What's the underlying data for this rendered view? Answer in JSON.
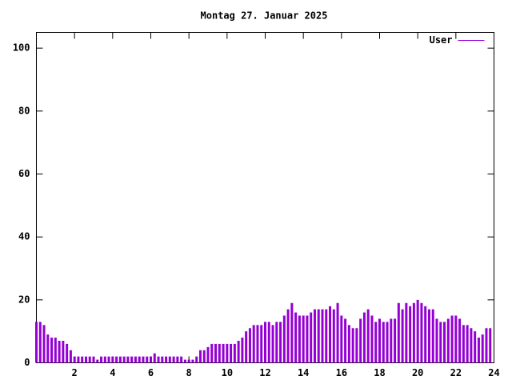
{
  "chart_data": {
    "type": "impulses",
    "title": "Montag 27. Januar 2025",
    "x": [
      0,
      0.2,
      0.4,
      0.6,
      0.8,
      1,
      1.2,
      1.4,
      1.6,
      1.8,
      2,
      2.2,
      2.4,
      2.6,
      2.8,
      3,
      3.2,
      3.4,
      3.6,
      3.8,
      4,
      4.2,
      4.4,
      4.6,
      4.8,
      5,
      5.2,
      5.4,
      5.6,
      5.8,
      6,
      6.2,
      6.4,
      6.6,
      6.8,
      7,
      7.2,
      7.4,
      7.6,
      7.8,
      8,
      8.2,
      8.4,
      8.6,
      8.8,
      9,
      9.2,
      9.4,
      9.6,
      9.8,
      10,
      10.2,
      10.4,
      10.6,
      10.8,
      11,
      11.2,
      11.4,
      11.6,
      11.8,
      12,
      12.2,
      12.4,
      12.6,
      12.8,
      13,
      13.2,
      13.4,
      13.6,
      13.8,
      14,
      14.2,
      14.4,
      14.6,
      14.8,
      15,
      15.2,
      15.4,
      15.6,
      15.8,
      16,
      16.2,
      16.4,
      16.6,
      16.8,
      17,
      17.2,
      17.4,
      17.6,
      17.8,
      18,
      18.2,
      18.4,
      18.6,
      18.8,
      19,
      19.2,
      19.4,
      19.6,
      19.8,
      20,
      20.2,
      20.4,
      20.6,
      20.8,
      21,
      21.2,
      21.4,
      21.6,
      21.8,
      22,
      22.2,
      22.4,
      22.6,
      22.8,
      23,
      23.2,
      23.4,
      23.6,
      23.8
    ],
    "series": [
      {
        "name": "User",
        "color": "#9400d3",
        "values": [
          13,
          13,
          12,
          9,
          8,
          8,
          7,
          7,
          6,
          4,
          2,
          2,
          2,
          2,
          2,
          2,
          1,
          2,
          2,
          2,
          2,
          2,
          2,
          2,
          2,
          2,
          2,
          2,
          2,
          2,
          2,
          3,
          2,
          2,
          2,
          2,
          2,
          2,
          2,
          1,
          1,
          1,
          2,
          4,
          4,
          5,
          6,
          6,
          6,
          6,
          6,
          6,
          6,
          7,
          8,
          10,
          11,
          12,
          12,
          12,
          13,
          13,
          12,
          13,
          13,
          15,
          17,
          19,
          16,
          15,
          15,
          15,
          16,
          17,
          17,
          17,
          17,
          18,
          17,
          19,
          15,
          14,
          12,
          11,
          11,
          14,
          16,
          17,
          15,
          13,
          14,
          13,
          13,
          14,
          14,
          19,
          17,
          19,
          18,
          19,
          20,
          19,
          18,
          17,
          17,
          14,
          13,
          13,
          14,
          15,
          15,
          14,
          12,
          12,
          11,
          10,
          8,
          9,
          11,
          11
        ]
      }
    ],
    "xlim": [
      0,
      24
    ],
    "xticks": [
      2,
      4,
      6,
      8,
      10,
      12,
      14,
      16,
      18,
      20,
      22,
      24
    ],
    "ylim": [
      0,
      105
    ],
    "yticks": [
      0,
      20,
      40,
      60,
      80,
      100
    ],
    "legend": "top-right"
  }
}
